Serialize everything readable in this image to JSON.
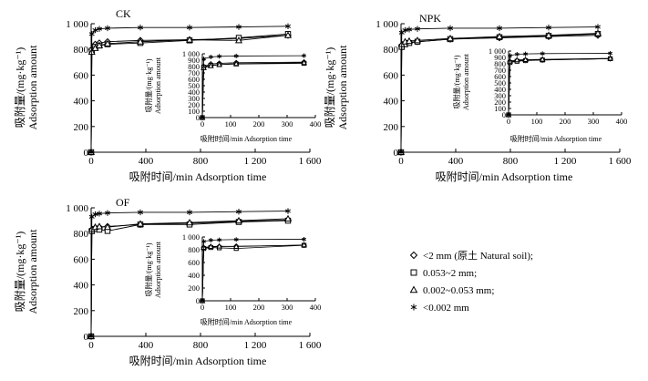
{
  "figure": {
    "legend": [
      {
        "marker": "diamond",
        "label": "<2 mm (原土 Natural soil);"
      },
      {
        "marker": "square",
        "label": "0.053~2 mm;"
      },
      {
        "marker": "triangle",
        "label": "0.002~0.053 mm;"
      },
      {
        "marker": "star",
        "label": "<0.002 mm"
      }
    ],
    "colors": {
      "line": "#000000",
      "background": "#ffffff"
    }
  },
  "chart_data": [
    {
      "type": "line",
      "title": "CK",
      "xlabel": "吸附时间/min  Adsorption time",
      "ylabel_cn": "吸附量/(mg·kg⁻¹)",
      "ylabel_en": "Adsorption amount",
      "xlim": [
        0,
        1600
      ],
      "ylim": [
        0,
        1000
      ],
      "xticks": [
        0,
        400,
        800,
        1200,
        1600
      ],
      "xtick_labels": [
        "0",
        "400",
        "800",
        "1 200",
        "1 600"
      ],
      "yticks": [
        0,
        200,
        400,
        600,
        800,
        1000
      ],
      "ytick_labels": [
        "0",
        "200",
        "400",
        "600",
        "800",
        "1 000"
      ],
      "x": [
        0,
        5,
        30,
        60,
        120,
        360,
        720,
        1080,
        1440
      ],
      "series": [
        {
          "name": "<2 mm (原土 Natural soil)",
          "marker": "diamond",
          "values": [
            0,
            800,
            840,
            850,
            860,
            870,
            875,
            885,
            910
          ]
        },
        {
          "name": "0.053~2 mm",
          "marker": "square",
          "values": [
            0,
            790,
            820,
            830,
            840,
            850,
            870,
            890,
            920
          ]
        },
        {
          "name": "0.002~0.053 mm",
          "marker": "triangle",
          "values": [
            0,
            780,
            810,
            830,
            845,
            860,
            875,
            870,
            910
          ]
        },
        {
          "name": "<0.002 mm",
          "marker": "star",
          "values": [
            0,
            920,
            950,
            960,
            965,
            970,
            970,
            975,
            980
          ]
        }
      ],
      "inset": {
        "xlabel": "吸附时间/min  Adsorption time",
        "ylabel_cn": "吸附量/(mg·kg⁻¹)",
        "ylabel_en": "Adsorption amount",
        "xlim": [
          0,
          400
        ],
        "ylim": [
          0,
          1000
        ],
        "xticks": [
          0,
          100,
          200,
          300,
          400
        ],
        "yticks": [
          0,
          100,
          200,
          300,
          400,
          500,
          600,
          700,
          800,
          900,
          1000
        ],
        "ytick_labels": [
          "0",
          "100",
          "200",
          "300",
          "400",
          "500",
          "600",
          "700",
          "800",
          "900",
          "1 000"
        ]
      }
    },
    {
      "type": "line",
      "title": "NPK",
      "xlabel": "吸附时间/min  Adsorption time",
      "ylabel_cn": "吸附量/(mg·kg⁻¹)",
      "ylabel_en": "Adsorption amount",
      "xlim": [
        0,
        1600
      ],
      "ylim": [
        0,
        1000
      ],
      "xticks": [
        0,
        400,
        800,
        1200,
        1600
      ],
      "xtick_labels": [
        "0",
        "400",
        "800",
        "1 200",
        "1 600"
      ],
      "yticks": [
        0,
        200,
        400,
        600,
        800,
        1000
      ],
      "ytick_labels": [
        "0",
        "200",
        "400",
        "600",
        "800",
        "1 000"
      ],
      "x": [
        0,
        5,
        30,
        60,
        120,
        360,
        720,
        1080,
        1440
      ],
      "series": [
        {
          "name": "<2 mm (原土 Natural soil)",
          "marker": "diamond",
          "values": [
            0,
            830,
            850,
            855,
            860,
            880,
            890,
            900,
            910
          ]
        },
        {
          "name": "0.053~2 mm",
          "marker": "square",
          "values": [
            0,
            820,
            840,
            850,
            860,
            880,
            895,
            905,
            920
          ]
        },
        {
          "name": "0.002~0.053 mm",
          "marker": "triangle",
          "values": [
            0,
            840,
            860,
            865,
            870,
            885,
            900,
            910,
            925
          ]
        },
        {
          "name": "<0.002 mm",
          "marker": "star",
          "values": [
            0,
            930,
            950,
            955,
            960,
            965,
            965,
            970,
            975
          ]
        }
      ],
      "inset": {
        "xlabel": "吸附时间/min  Adsorption time",
        "ylabel_cn": "吸附量/(mg·kg⁻¹)",
        "ylabel_en": "Adsorption amount",
        "xlim": [
          0,
          400
        ],
        "ylim": [
          0,
          1000
        ],
        "xticks": [
          0,
          100,
          200,
          300,
          400
        ],
        "yticks": [
          0,
          100,
          200,
          300,
          400,
          500,
          600,
          700,
          800,
          900,
          1000
        ],
        "ytick_labels": [
          "0",
          "100",
          "200",
          "300",
          "400",
          "500",
          "600",
          "700",
          "800",
          "900",
          "1 000"
        ]
      }
    },
    {
      "type": "line",
      "title": "OF",
      "xlabel": "吸附时间/min  Adsorption time",
      "ylabel_cn": "吸附量/(mg·kg⁻¹)",
      "ylabel_en": "Adsorption amount",
      "xlim": [
        0,
        1600
      ],
      "ylim": [
        0,
        1000
      ],
      "xticks": [
        0,
        400,
        800,
        1200,
        1600
      ],
      "xtick_labels": [
        "0",
        "400",
        "800",
        "1 200",
        "1 600"
      ],
      "yticks": [
        0,
        200,
        400,
        600,
        800,
        1000
      ],
      "ytick_labels": [
        "0",
        "200",
        "400",
        "600",
        "800",
        "1 000"
      ],
      "x": [
        0,
        5,
        30,
        60,
        120,
        360,
        720,
        1080,
        1440
      ],
      "series": [
        {
          "name": "<2 mm (原土 Natural soil)",
          "marker": "diamond",
          "values": [
            0,
            830,
            845,
            850,
            855,
            870,
            880,
            895,
            905
          ]
        },
        {
          "name": "0.053~2 mm",
          "marker": "square",
          "values": [
            0,
            820,
            835,
            830,
            820,
            870,
            870,
            890,
            900
          ]
        },
        {
          "name": "0.002~0.053 mm",
          "marker": "triangle",
          "values": [
            0,
            835,
            850,
            855,
            850,
            875,
            885,
            900,
            915
          ]
        },
        {
          "name": "<0.002 mm",
          "marker": "star",
          "values": [
            0,
            930,
            950,
            955,
            960,
            965,
            965,
            970,
            975
          ]
        }
      ],
      "inset": {
        "xlabel": "吸附时间/min  Adsorption time",
        "ylabel_cn": "吸附量/(mg·kg⁻¹)",
        "ylabel_en": "Adsorption amount",
        "xlim": [
          0,
          400
        ],
        "ylim": [
          0,
          1000
        ],
        "xticks": [
          0,
          100,
          200,
          300,
          400
        ],
        "yticks": [
          0,
          200,
          400,
          600,
          800,
          1000
        ],
        "ytick_labels": [
          "0",
          "200",
          "400",
          "600",
          "800",
          "1 000"
        ]
      }
    }
  ]
}
